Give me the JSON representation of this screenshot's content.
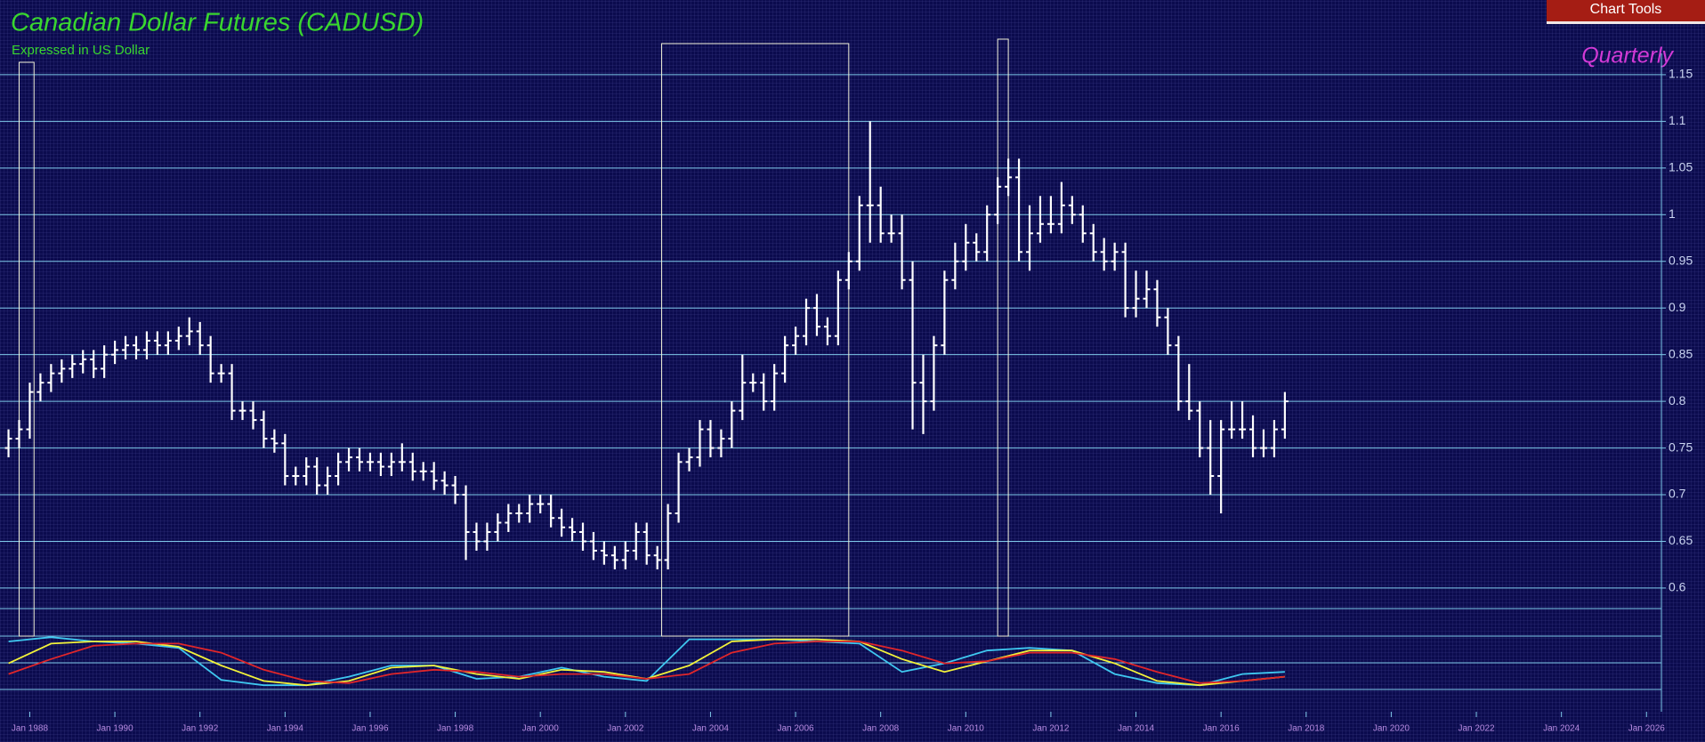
{
  "chart_data": [
    {
      "type": "ohlc",
      "title": "Canadian Dollar Futures (CADUSD)",
      "subtitle": "Expressed in US Dollar",
      "period": "Quarterly",
      "color": "#ffffff",
      "grid_color": "#7ec8e8",
      "xlim": [
        1987.3,
        2026.35
      ],
      "xticks": [
        {
          "value": 1988,
          "label": "Jan 1988"
        },
        {
          "value": 1990,
          "label": "Jan 1990"
        },
        {
          "value": 1992,
          "label": "Jan 1992"
        },
        {
          "value": 1994,
          "label": "Jan 1994"
        },
        {
          "value": 1996,
          "label": "Jan 1996"
        },
        {
          "value": 1998,
          "label": "Jan 1998"
        },
        {
          "value": 2000,
          "label": "Jan 2000"
        },
        {
          "value": 2002,
          "label": "Jan 2002"
        },
        {
          "value": 2004,
          "label": "Jan 2004"
        },
        {
          "value": 2006,
          "label": "Jan 2006"
        },
        {
          "value": 2008,
          "label": "Jan 2008"
        },
        {
          "value": 2010,
          "label": "Jan 2010"
        },
        {
          "value": 2012,
          "label": "Jan 2012"
        },
        {
          "value": 2014,
          "label": "Jan 2014"
        },
        {
          "value": 2016,
          "label": "Jan 2016"
        },
        {
          "value": 2018,
          "label": "Jan 2018"
        },
        {
          "value": 2020,
          "label": "Jan 2020"
        },
        {
          "value": 2022,
          "label": "Jan 2022"
        },
        {
          "value": 2024,
          "label": "Jan 2024"
        },
        {
          "value": 2026,
          "label": "Jan 2026"
        }
      ],
      "ylim": [
        0.578,
        1.23
      ],
      "yticks": [
        0.6,
        0.65,
        0.7,
        0.75,
        0.8,
        0.85,
        0.9,
        0.95,
        1,
        1.05,
        1.1,
        1.15
      ],
      "highlights": [
        [
          1987.75,
          1988.1
        ],
        [
          2002.85,
          2007.25
        ],
        [
          2010.75,
          2011.0
        ]
      ],
      "x": [
        1987.5,
        1987.75,
        1988,
        1988.25,
        1988.5,
        1988.75,
        1989,
        1989.25,
        1989.5,
        1989.75,
        1990,
        1990.25,
        1990.5,
        1990.75,
        1991,
        1991.25,
        1991.5,
        1991.75,
        1992,
        1992.25,
        1992.5,
        1992.75,
        1993,
        1993.25,
        1993.5,
        1993.75,
        1994,
        1994.25,
        1994.5,
        1994.75,
        1995,
        1995.25,
        1995.5,
        1995.75,
        1996,
        1996.25,
        1996.5,
        1996.75,
        1997,
        1997.25,
        1997.5,
        1997.75,
        1998,
        1998.25,
        1998.5,
        1998.75,
        1999,
        1999.25,
        1999.5,
        1999.75,
        2000,
        2000.25,
        2000.5,
        2000.75,
        2001,
        2001.25,
        2001.5,
        2001.75,
        2002,
        2002.25,
        2002.5,
        2002.75,
        2003,
        2003.25,
        2003.5,
        2003.75,
        2004,
        2004.25,
        2004.5,
        2004.75,
        2005,
        2005.25,
        2005.5,
        2005.75,
        2006,
        2006.25,
        2006.5,
        2006.75,
        2007,
        2007.25,
        2007.5,
        2007.75,
        2008,
        2008.25,
        2008.5,
        2008.75,
        2009,
        2009.25,
        2009.5,
        2009.75,
        2010,
        2010.25,
        2010.5,
        2010.75,
        2011,
        2011.25,
        2011.5,
        2011.75,
        2012,
        2012.25,
        2012.5,
        2012.75,
        2013,
        2013.25,
        2013.5,
        2013.75,
        2014,
        2014.25,
        2014.5,
        2014.75,
        2015,
        2015.25,
        2015.5,
        2015.75,
        2016,
        2016.25,
        2016.5,
        2016.75,
        2017,
        2017.25,
        2017.5
      ],
      "open": [
        0.75,
        0.76,
        0.77,
        0.81,
        0.82,
        0.83,
        0.835,
        0.84,
        0.845,
        0.835,
        0.85,
        0.855,
        0.86,
        0.855,
        0.865,
        0.86,
        0.865,
        0.87,
        0.875,
        0.86,
        0.83,
        0.83,
        0.79,
        0.79,
        0.78,
        0.76,
        0.755,
        0.72,
        0.72,
        0.73,
        0.71,
        0.72,
        0.735,
        0.74,
        0.735,
        0.735,
        0.73,
        0.735,
        0.735,
        0.725,
        0.725,
        0.715,
        0.71,
        0.7,
        0.66,
        0.65,
        0.66,
        0.67,
        0.68,
        0.68,
        0.69,
        0.69,
        0.675,
        0.665,
        0.66,
        0.65,
        0.64,
        0.635,
        0.63,
        0.64,
        0.66,
        0.635,
        0.63,
        0.68,
        0.735,
        0.74,
        0.77,
        0.75,
        0.76,
        0.79,
        0.82,
        0.82,
        0.8,
        0.83,
        0.86,
        0.87,
        0.9,
        0.88,
        0.87,
        0.93,
        0.95,
        1.01,
        1.01,
        0.98,
        0.98,
        0.93,
        0.82,
        0.8,
        0.86,
        0.93,
        0.95,
        0.97,
        0.96,
        1,
        1.03,
        1.04,
        0.96,
        0.98,
        0.99,
        0.99,
        1.01,
        1,
        0.98,
        0.96,
        0.95,
        0.96,
        0.9,
        0.91,
        0.92,
        0.89,
        0.86,
        0.8,
        0.79,
        0.75,
        0.72,
        0.77,
        0.77,
        0.77,
        0.75,
        0.75,
        0.77
      ],
      "high": [
        0.77,
        0.78,
        0.82,
        0.83,
        0.84,
        0.845,
        0.85,
        0.855,
        0.855,
        0.86,
        0.865,
        0.87,
        0.87,
        0.875,
        0.875,
        0.875,
        0.88,
        0.89,
        0.885,
        0.87,
        0.84,
        0.84,
        0.8,
        0.8,
        0.79,
        0.77,
        0.765,
        0.73,
        0.74,
        0.74,
        0.73,
        0.745,
        0.75,
        0.75,
        0.745,
        0.745,
        0.745,
        0.755,
        0.745,
        0.735,
        0.735,
        0.725,
        0.72,
        0.71,
        0.67,
        0.67,
        0.68,
        0.69,
        0.69,
        0.7,
        0.7,
        0.7,
        0.685,
        0.675,
        0.67,
        0.66,
        0.65,
        0.645,
        0.65,
        0.67,
        0.67,
        0.645,
        0.69,
        0.745,
        0.75,
        0.78,
        0.78,
        0.77,
        0.8,
        0.85,
        0.83,
        0.83,
        0.84,
        0.87,
        0.88,
        0.91,
        0.915,
        0.89,
        0.94,
        0.96,
        1.02,
        1.1,
        1.03,
        1,
        1,
        0.95,
        0.85,
        0.87,
        0.94,
        0.97,
        0.99,
        0.98,
        1.01,
        1.04,
        1.06,
        1.06,
        1.01,
        1.02,
        1.02,
        1.035,
        1.02,
        1.01,
        0.99,
        0.975,
        0.97,
        0.97,
        0.94,
        0.94,
        0.93,
        0.9,
        0.87,
        0.84,
        0.8,
        0.78,
        0.78,
        0.8,
        0.8,
        0.785,
        0.77,
        0.78,
        0.81
      ],
      "low": [
        0.74,
        0.75,
        0.76,
        0.8,
        0.81,
        0.82,
        0.825,
        0.83,
        0.825,
        0.825,
        0.84,
        0.845,
        0.845,
        0.845,
        0.85,
        0.85,
        0.855,
        0.86,
        0.85,
        0.82,
        0.82,
        0.78,
        0.78,
        0.77,
        0.75,
        0.745,
        0.71,
        0.71,
        0.71,
        0.7,
        0.7,
        0.71,
        0.725,
        0.725,
        0.725,
        0.72,
        0.72,
        0.725,
        0.715,
        0.715,
        0.705,
        0.7,
        0.69,
        0.63,
        0.64,
        0.64,
        0.65,
        0.66,
        0.67,
        0.67,
        0.68,
        0.665,
        0.655,
        0.65,
        0.64,
        0.63,
        0.625,
        0.62,
        0.62,
        0.63,
        0.625,
        0.62,
        0.62,
        0.67,
        0.725,
        0.73,
        0.74,
        0.74,
        0.75,
        0.78,
        0.81,
        0.79,
        0.79,
        0.82,
        0.85,
        0.86,
        0.87,
        0.86,
        0.86,
        0.92,
        0.94,
        0.97,
        0.97,
        0.97,
        0.92,
        0.77,
        0.765,
        0.79,
        0.85,
        0.92,
        0.94,
        0.95,
        0.95,
        0.99,
        1.02,
        0.95,
        0.94,
        0.97,
        0.98,
        0.98,
        0.99,
        0.97,
        0.95,
        0.94,
        0.94,
        0.89,
        0.89,
        0.9,
        0.88,
        0.85,
        0.79,
        0.78,
        0.74,
        0.7,
        0.68,
        0.76,
        0.76,
        0.74,
        0.74,
        0.74,
        0.76
      ],
      "close": [
        0.76,
        0.77,
        0.81,
        0.82,
        0.83,
        0.835,
        0.84,
        0.845,
        0.835,
        0.85,
        0.855,
        0.86,
        0.855,
        0.865,
        0.86,
        0.865,
        0.87,
        0.875,
        0.86,
        0.83,
        0.83,
        0.79,
        0.79,
        0.78,
        0.76,
        0.755,
        0.72,
        0.72,
        0.73,
        0.71,
        0.72,
        0.735,
        0.74,
        0.735,
        0.735,
        0.73,
        0.735,
        0.735,
        0.725,
        0.725,
        0.715,
        0.71,
        0.7,
        0.66,
        0.65,
        0.66,
        0.67,
        0.68,
        0.68,
        0.69,
        0.69,
        0.675,
        0.665,
        0.66,
        0.65,
        0.64,
        0.635,
        0.63,
        0.64,
        0.66,
        0.635,
        0.63,
        0.68,
        0.735,
        0.74,
        0.77,
        0.75,
        0.76,
        0.79,
        0.82,
        0.82,
        0.8,
        0.83,
        0.86,
        0.87,
        0.9,
        0.88,
        0.87,
        0.93,
        0.95,
        1.01,
        1.01,
        0.98,
        0.98,
        0.93,
        0.82,
        0.8,
        0.86,
        0.93,
        0.95,
        0.97,
        0.96,
        1,
        1.03,
        1.04,
        0.96,
        0.98,
        0.99,
        0.99,
        1.01,
        1,
        0.98,
        0.96,
        0.95,
        0.96,
        0.9,
        0.91,
        0.92,
        0.89,
        0.86,
        0.8,
        0.79,
        0.75,
        0.72,
        0.77,
        0.77,
        0.77,
        0.75,
        0.75,
        0.77,
        0.8
      ]
    },
    {
      "type": "line",
      "ylim": [
        0,
        100
      ],
      "yticks": [
        0,
        50,
        100
      ],
      "x": [
        1987.5,
        1988.5,
        1989.5,
        1990.5,
        1991.5,
        1992.5,
        1993.5,
        1994.5,
        1995.5,
        1996.5,
        1997.5,
        1998.5,
        1999.5,
        2000.5,
        2001.5,
        2002.5,
        2003.5,
        2004.5,
        2005.5,
        2006.5,
        2007.5,
        2008.5,
        2009.5,
        2010.5,
        2011.5,
        2012.5,
        2013.5,
        2014.5,
        2015.5,
        2016.5,
        2017.5
      ],
      "series": [
        {
          "color": "#3fc8f0",
          "values": [
            90,
            98,
            90,
            86,
            78,
            18,
            8,
            8,
            24,
            45,
            45,
            20,
            24,
            41,
            24,
            16,
            94,
            94,
            94,
            90,
            86,
            33,
            49,
            73,
            78,
            73,
            29,
            12,
            8,
            29,
            33
          ]
        },
        {
          "color": "#f2f23a",
          "values": [
            49,
            86,
            90,
            90,
            80,
            45,
            16,
            8,
            16,
            41,
            45,
            29,
            20,
            37,
            33,
            20,
            45,
            90,
            94,
            94,
            90,
            57,
            33,
            53,
            73,
            73,
            49,
            16,
            8,
            16,
            24
          ]
        },
        {
          "color": "#e0262a",
          "values": [
            29,
            57,
            82,
            86,
            86,
            69,
            37,
            16,
            12,
            29,
            37,
            33,
            24,
            29,
            29,
            20,
            29,
            69,
            86,
            90,
            90,
            73,
            49,
            53,
            69,
            69,
            57,
            33,
            12,
            16,
            24
          ]
        }
      ]
    }
  ],
  "toolbar": {
    "button": "Chart Tools"
  }
}
